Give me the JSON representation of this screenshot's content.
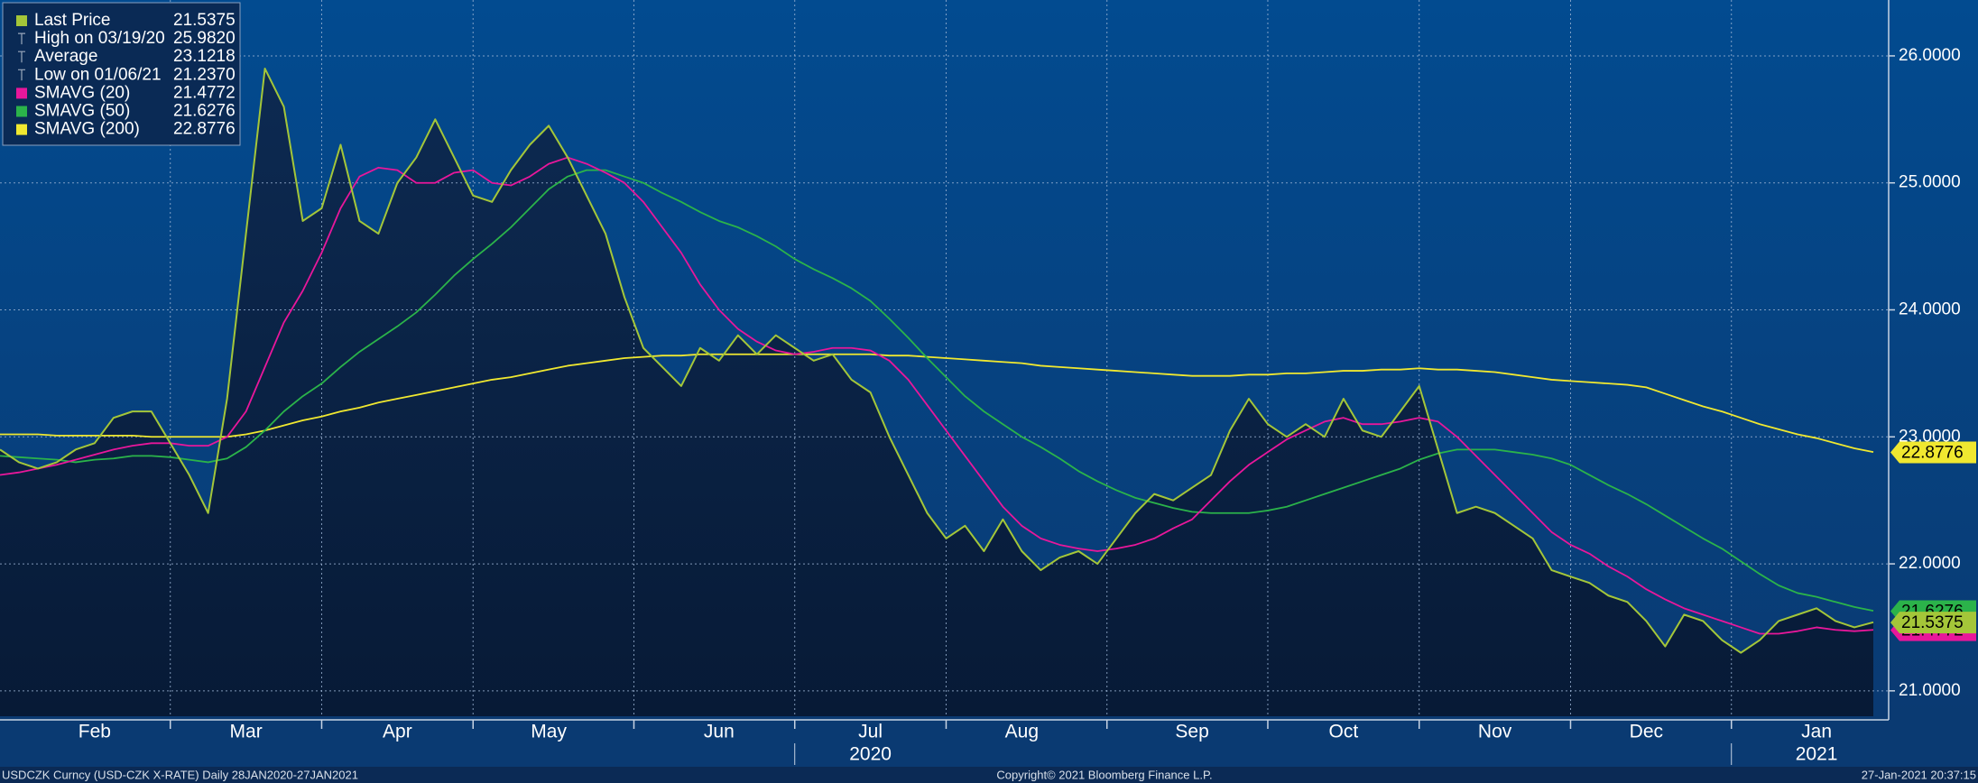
{
  "chart_data": {
    "type": "line",
    "categories": [
      null,
      null,
      null,
      null,
      null,
      "Feb",
      null,
      null,
      null,
      null,
      null,
      null,
      null,
      "Mar",
      null,
      null,
      null,
      null,
      null,
      null,
      null,
      "Apr",
      null,
      null,
      null,
      null,
      null,
      null,
      null,
      "May",
      null,
      null,
      null,
      null,
      null,
      null,
      null,
      null,
      "Jun",
      null,
      null,
      null,
      null,
      null,
      null,
      null,
      "Jul",
      null,
      null,
      null,
      null,
      null,
      null,
      null,
      "Aug",
      null,
      null,
      null,
      null,
      null,
      null,
      null,
      null,
      "Sep",
      null,
      null,
      null,
      null,
      null,
      null,
      null,
      "Oct",
      null,
      null,
      null,
      null,
      null,
      null,
      null,
      "Nov",
      null,
      null,
      null,
      null,
      null,
      null,
      null,
      "Dec",
      null,
      null,
      null,
      null,
      null,
      null,
      null,
      null,
      "Jan",
      null,
      null,
      null
    ],
    "xgroups": [
      {
        "label": "2020",
        "category": "Jul"
      },
      {
        "label": "2021",
        "category": "Jan"
      }
    ],
    "ylim": [
      20.8,
      26.44
    ],
    "yticks": [
      {
        "value": 21,
        "label": "21.0000"
      },
      {
        "value": 22,
        "label": "22.0000"
      },
      {
        "value": 23,
        "label": "23.0000"
      },
      {
        "value": 24,
        "label": "24.0000"
      },
      {
        "value": 25,
        "label": "25.0000"
      },
      {
        "value": 26,
        "label": "26.0000"
      }
    ],
    "grid": true,
    "series": [
      {
        "name": "Last Price",
        "color": "#a4c639",
        "legend_value": 21.5375,
        "values": [
          22.9,
          22.8,
          22.75,
          22.8,
          22.9,
          22.95,
          23.15,
          23.2,
          23.2,
          22.95,
          22.7,
          22.4,
          23.3,
          24.6,
          25.9,
          25.6,
          24.7,
          24.8,
          25.3,
          24.7,
          24.6,
          25.0,
          25.2,
          25.5,
          25.2,
          24.9,
          24.85,
          25.1,
          25.3,
          25.45,
          25.2,
          24.9,
          24.6,
          24.1,
          23.7,
          23.55,
          23.4,
          23.7,
          23.6,
          23.8,
          23.65,
          23.8,
          23.7,
          23.6,
          23.65,
          23.45,
          23.35,
          23.0,
          22.7,
          22.4,
          22.2,
          22.3,
          22.1,
          22.35,
          22.1,
          21.95,
          22.05,
          22.1,
          22.0,
          22.2,
          22.4,
          22.55,
          22.5,
          22.6,
          22.7,
          23.05,
          23.3,
          23.1,
          23.0,
          23.1,
          23.0,
          23.3,
          23.05,
          23.0,
          23.2,
          23.4,
          22.9,
          22.4,
          22.45,
          22.4,
          22.3,
          22.2,
          21.95,
          21.9,
          21.85,
          21.75,
          21.7,
          21.55,
          21.35,
          21.6,
          21.55,
          21.4,
          21.3,
          21.4,
          21.55,
          21.6,
          21.65,
          21.55,
          21.5,
          21.54
        ]
      },
      {
        "name": "SMAVG (20)",
        "color": "#e8179b",
        "legend_value": 21.4772,
        "values": [
          22.7,
          22.72,
          22.75,
          22.78,
          22.82,
          22.86,
          22.9,
          22.93,
          22.95,
          22.95,
          22.93,
          22.93,
          23.0,
          23.2,
          23.55,
          23.9,
          24.15,
          24.45,
          24.8,
          25.05,
          25.12,
          25.1,
          25.0,
          25.0,
          25.08,
          25.1,
          25.0,
          24.98,
          25.05,
          25.15,
          25.2,
          25.15,
          25.08,
          25.0,
          24.85,
          24.65,
          24.45,
          24.2,
          24.0,
          23.85,
          23.75,
          23.68,
          23.65,
          23.67,
          23.7,
          23.7,
          23.68,
          23.6,
          23.45,
          23.25,
          23.05,
          22.85,
          22.65,
          22.45,
          22.3,
          22.2,
          22.15,
          22.12,
          22.1,
          22.12,
          22.15,
          22.2,
          22.28,
          22.35,
          22.5,
          22.65,
          22.78,
          22.88,
          22.98,
          23.05,
          23.12,
          23.15,
          23.1,
          23.1,
          23.12,
          23.15,
          23.12,
          23.0,
          22.85,
          22.7,
          22.55,
          22.4,
          22.25,
          22.15,
          22.08,
          21.98,
          21.9,
          21.8,
          21.72,
          21.65,
          21.6,
          21.55,
          21.5,
          21.45,
          21.45,
          21.47,
          21.5,
          21.48,
          21.47,
          21.48
        ]
      },
      {
        "name": "SMAVG (50)",
        "color": "#2bb34a",
        "legend_value": 21.6276,
        "values": [
          22.85,
          22.84,
          22.83,
          22.82,
          22.8,
          22.82,
          22.83,
          22.85,
          22.85,
          22.84,
          22.82,
          22.8,
          22.83,
          22.92,
          23.05,
          23.2,
          23.32,
          23.42,
          23.55,
          23.67,
          23.77,
          23.87,
          23.98,
          24.12,
          24.27,
          24.4,
          24.52,
          24.65,
          24.8,
          24.95,
          25.05,
          25.1,
          25.1,
          25.05,
          25.0,
          24.92,
          24.85,
          24.77,
          24.7,
          24.65,
          24.58,
          24.5,
          24.4,
          24.32,
          24.25,
          24.17,
          24.07,
          23.93,
          23.78,
          23.62,
          23.47,
          23.32,
          23.2,
          23.1,
          23.0,
          22.92,
          22.83,
          22.73,
          22.65,
          22.58,
          22.52,
          22.48,
          22.44,
          22.41,
          22.4,
          22.4,
          22.4,
          22.42,
          22.45,
          22.5,
          22.55,
          22.6,
          22.65,
          22.7,
          22.75,
          22.82,
          22.87,
          22.9,
          22.9,
          22.9,
          22.88,
          22.86,
          22.83,
          22.78,
          22.7,
          22.62,
          22.55,
          22.47,
          22.38,
          22.29,
          22.2,
          22.12,
          22.02,
          21.92,
          21.83,
          21.77,
          21.74,
          21.7,
          21.66,
          21.63
        ]
      },
      {
        "name": "SMAVG (200)",
        "color": "#f0e830",
        "legend_value": 22.8776,
        "values": [
          23.02,
          23.02,
          23.02,
          23.01,
          23.01,
          23.01,
          23.01,
          23.01,
          23.0,
          23.0,
          23.0,
          23.0,
          23.0,
          23.02,
          23.05,
          23.09,
          23.13,
          23.16,
          23.2,
          23.23,
          23.27,
          23.3,
          23.33,
          23.36,
          23.39,
          23.42,
          23.45,
          23.47,
          23.5,
          23.53,
          23.56,
          23.58,
          23.6,
          23.62,
          23.63,
          23.64,
          23.64,
          23.65,
          23.65,
          23.65,
          23.65,
          23.65,
          23.65,
          23.65,
          23.65,
          23.65,
          23.65,
          23.64,
          23.64,
          23.63,
          23.62,
          23.61,
          23.6,
          23.59,
          23.58,
          23.56,
          23.55,
          23.54,
          23.53,
          23.52,
          23.51,
          23.5,
          23.49,
          23.48,
          23.48,
          23.48,
          23.49,
          23.49,
          23.5,
          23.5,
          23.51,
          23.52,
          23.52,
          23.53,
          23.53,
          23.54,
          23.53,
          23.53,
          23.52,
          23.51,
          23.49,
          23.47,
          23.45,
          23.44,
          23.43,
          23.42,
          23.41,
          23.39,
          23.34,
          23.29,
          23.24,
          23.2,
          23.15,
          23.1,
          23.06,
          23.02,
          22.99,
          22.95,
          22.91,
          22.88
        ]
      }
    ],
    "legend_stats": [
      {
        "name": "High on 03/19/20",
        "value": {
          "value": 25.982,
          "label": "25.9820"
        }
      },
      {
        "name": "Average",
        "value": 23.1218
      },
      {
        "name": "Low on 01/06/21",
        "value": {
          "value": 21.237,
          "label": "21.2370"
        }
      }
    ],
    "footer": {
      "left": "USDCZK Curncy (USD-CZK X-RATE)  Daily 28JAN2020-27JAN2021",
      "center": "Copyright© 2021 Bloomberg Finance L.P.",
      "right": "27-Jan-2021 20:37:15"
    }
  }
}
